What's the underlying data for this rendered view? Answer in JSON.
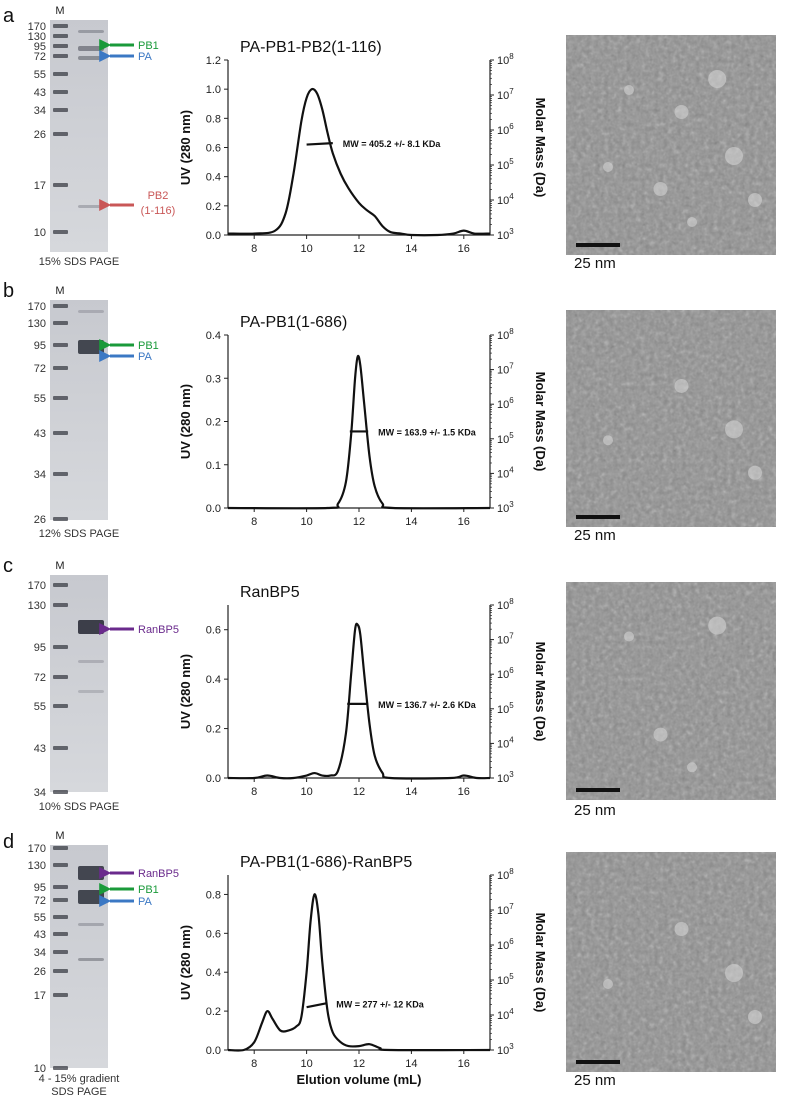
{
  "panels": [
    {
      "letter": "a",
      "gel": {
        "marker_label": "M",
        "ladder": [
          "170",
          "130",
          "95",
          "72",
          "55",
          "43",
          "34",
          "26",
          "17",
          "10"
        ],
        "caption": "15% SDS PAGE",
        "annotations": [
          {
            "text": "PB1",
            "color": "#1a9a3a"
          },
          {
            "text": "PA",
            "color": "#3b78c4"
          },
          {
            "text": "PB2",
            "text2": "(1-116)",
            "color": "#c95757"
          }
        ]
      },
      "chart_title": "PA-PB1-PB2(1-116)",
      "mw_label": "MW = 405.2 +/- 8.1 KDa",
      "scale_bar": "25 nm"
    },
    {
      "letter": "b",
      "gel": {
        "marker_label": "M",
        "ladder": [
          "170",
          "130",
          "95",
          "72",
          "55",
          "43",
          "34",
          "26"
        ],
        "caption": "12% SDS PAGE",
        "annotations": [
          {
            "text": "PB1",
            "color": "#1a9a3a"
          },
          {
            "text": "PA",
            "color": "#3b78c4"
          }
        ]
      },
      "chart_title": "PA-PB1(1-686)",
      "mw_label": "MW = 163.9 +/- 1.5 KDa",
      "scale_bar": "25 nm"
    },
    {
      "letter": "c",
      "gel": {
        "marker_label": "M",
        "ladder": [
          "170",
          "130",
          "95",
          "72",
          "55",
          "43",
          "34"
        ],
        "caption": "10% SDS PAGE",
        "annotations": [
          {
            "text": "RanBP5",
            "color": "#6a2a8c"
          }
        ]
      },
      "chart_title": "RanBP5",
      "mw_label": "MW = 136.7 +/- 2.6 KDa",
      "scale_bar": "25 nm"
    },
    {
      "letter": "d",
      "gel": {
        "marker_label": "M",
        "ladder": [
          "170",
          "130",
          "95",
          "72",
          "55",
          "43",
          "34",
          "26",
          "17",
          "10"
        ],
        "caption": "4 - 15% gradient",
        "caption2": "SDS PAGE",
        "annotations": [
          {
            "text": "RanBP5",
            "color": "#6a2a8c"
          },
          {
            "text": "PB1",
            "color": "#1a9a3a"
          },
          {
            "text": "PA",
            "color": "#3b78c4"
          }
        ]
      },
      "chart_title": "PA-PB1(1-686)-RanBP5",
      "mw_label": "MW = 277 +/- 12 KDa",
      "scale_bar": "25 nm"
    }
  ],
  "chart_data": [
    {
      "type": "line",
      "title": "PA-PB1-PB2(1-116)",
      "xlabel": "",
      "ylabel": "UV (280 nm)",
      "ylabel_right": "Molar Mass (Da)",
      "xlim": [
        7,
        17
      ],
      "ylim": [
        0,
        1.2
      ],
      "xticks": [
        "8",
        "10",
        "12",
        "14",
        "16"
      ],
      "yticks": [
        "0.0",
        "0.2",
        "0.4",
        "0.6",
        "0.8",
        "1.0",
        "1.2"
      ],
      "y2ticks": [
        3,
        4,
        5,
        6,
        7,
        8
      ],
      "y2_base": "10",
      "trace": {
        "x": [
          7.0,
          8.0,
          8.8,
          9.2,
          9.5,
          9.8,
          10.0,
          10.2,
          10.4,
          10.6,
          10.8,
          11.0,
          11.3,
          11.6,
          12.0,
          12.3,
          12.6,
          12.9,
          13.2,
          13.6,
          14.0,
          15.0,
          15.6,
          16.0,
          16.4,
          17.0
        ],
        "y": [
          0.01,
          0.01,
          0.03,
          0.15,
          0.42,
          0.78,
          0.94,
          1.0,
          0.97,
          0.86,
          0.7,
          0.56,
          0.42,
          0.32,
          0.22,
          0.17,
          0.13,
          0.06,
          0.02,
          0.01,
          0.0,
          0.0,
          0.01,
          0.03,
          0.01,
          0.01
        ]
      },
      "mw_segment": {
        "x": [
          10.0,
          11.0
        ],
        "y": [
          0.62,
          0.63
        ]
      }
    },
    {
      "type": "line",
      "title": "PA-PB1(1-686)",
      "xlabel": "",
      "ylabel": "UV (280 nm)",
      "ylabel_right": "Molar Mass (Da)",
      "xlim": [
        7,
        17
      ],
      "ylim": [
        0,
        0.4
      ],
      "xticks": [
        "8",
        "10",
        "12",
        "14",
        "16"
      ],
      "yticks": [
        "0.0",
        "0.1",
        "0.2",
        "0.3",
        "0.4"
      ],
      "y2ticks": [
        3,
        4,
        5,
        6,
        7,
        8
      ],
      "y2_base": "10",
      "trace": {
        "x": [
          7.0,
          10.8,
          11.2,
          11.5,
          11.7,
          11.85,
          11.95,
          12.05,
          12.2,
          12.4,
          12.6,
          12.9,
          13.3,
          17.0
        ],
        "y": [
          0.0,
          0.0,
          0.01,
          0.06,
          0.17,
          0.3,
          0.35,
          0.33,
          0.24,
          0.12,
          0.05,
          0.01,
          0.0,
          0.0
        ]
      },
      "mw_segment": {
        "x": [
          11.65,
          12.35
        ],
        "y": [
          0.177,
          0.177
        ]
      }
    },
    {
      "type": "line",
      "title": "RanBP5",
      "xlabel": "",
      "ylabel": "UV (280 nm)",
      "ylabel_right": "Molar Mass (Da)",
      "xlim": [
        7,
        17
      ],
      "ylim": [
        0,
        0.7
      ],
      "xticks": [
        "8",
        "10",
        "12",
        "14",
        "16"
      ],
      "yticks": [
        "0.0",
        "0.2",
        "0.4",
        "0.6"
      ],
      "y2ticks": [
        3,
        4,
        5,
        6,
        7,
        8
      ],
      "y2_base": "10",
      "trace": {
        "x": [
          7.0,
          8.0,
          8.5,
          9.0,
          9.5,
          10.0,
          10.3,
          10.6,
          10.9,
          11.2,
          11.5,
          11.7,
          11.85,
          11.95,
          12.05,
          12.2,
          12.4,
          12.6,
          12.9,
          13.2,
          15.5,
          16.0,
          16.5,
          17.0
        ],
        "y": [
          0.0,
          0.0,
          0.01,
          0.0,
          0.0,
          0.01,
          0.02,
          0.01,
          0.01,
          0.03,
          0.18,
          0.42,
          0.6,
          0.62,
          0.58,
          0.42,
          0.22,
          0.09,
          0.02,
          0.0,
          0.0,
          0.01,
          0.0,
          0.0
        ]
      },
      "mw_segment": {
        "x": [
          11.55,
          12.35
        ],
        "y": [
          0.3,
          0.3
        ]
      }
    },
    {
      "type": "line",
      "title": "PA-PB1(1-686)-RanBP5",
      "xlabel": "Elution volume (mL)",
      "ylabel": "UV (280 nm)",
      "ylabel_right": "Molar Mass (Da)",
      "xlim": [
        7,
        17
      ],
      "ylim": [
        0,
        0.9
      ],
      "xticks": [
        "8",
        "10",
        "12",
        "14",
        "16"
      ],
      "yticks": [
        "0.0",
        "0.2",
        "0.4",
        "0.6",
        "0.8"
      ],
      "y2ticks": [
        3,
        4,
        5,
        6,
        7,
        8
      ],
      "y2_base": "10",
      "trace": {
        "x": [
          7.0,
          7.6,
          8.0,
          8.3,
          8.5,
          8.7,
          9.0,
          9.3,
          9.6,
          9.8,
          10.0,
          10.15,
          10.3,
          10.45,
          10.6,
          10.8,
          11.0,
          11.3,
          11.6,
          12.0,
          12.4,
          12.8,
          13.2,
          17.0
        ],
        "y": [
          0.0,
          0.0,
          0.04,
          0.14,
          0.2,
          0.16,
          0.1,
          0.1,
          0.12,
          0.17,
          0.4,
          0.66,
          0.8,
          0.7,
          0.45,
          0.2,
          0.09,
          0.04,
          0.02,
          0.02,
          0.03,
          0.01,
          0.0,
          0.0
        ]
      },
      "mw_segment": {
        "x": [
          10.0,
          10.75
        ],
        "y": [
          0.22,
          0.24
        ]
      }
    }
  ]
}
